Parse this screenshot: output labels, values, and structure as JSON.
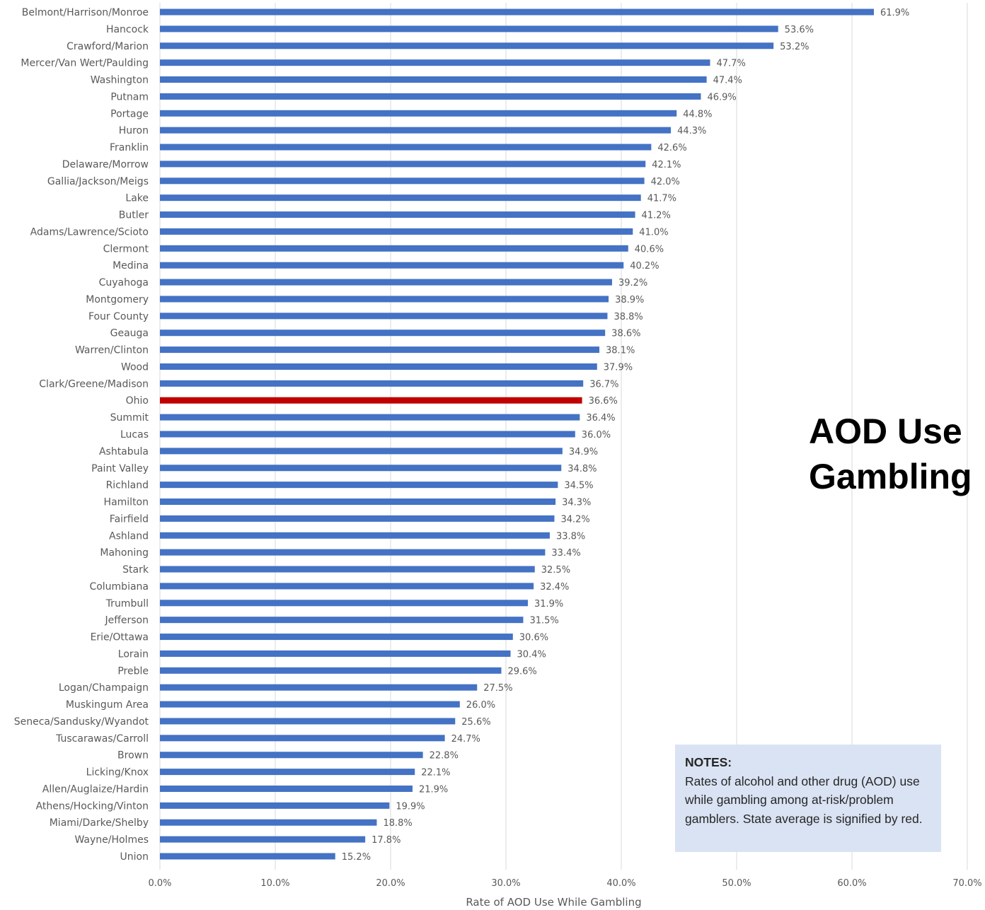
{
  "side_title": {
    "line1": "AOD Use",
    "line2": "Gambling"
  },
  "notes": {
    "heading": "NOTES:",
    "body": "Rates of alcohol and other drug (AOD) use while gambling among at-risk/problem gamblers. State average is signified by red."
  },
  "chart_data": {
    "type": "bar",
    "orientation": "horizontal",
    "xlabel": "Rate of AOD Use While Gambling",
    "xlim": [
      0,
      70
    ],
    "x_ticks": [
      "0.0%",
      "10.0%",
      "20.0%",
      "30.0%",
      "40.0%",
      "50.0%",
      "60.0%",
      "70.0%"
    ],
    "grid": "vertical",
    "bar_color": "#4472c4",
    "highlight_color": "#c00000",
    "highlight_category": "Ohio",
    "categories": [
      "Belmont/Harrison/Monroe",
      "Hancock",
      "Crawford/Marion",
      "Mercer/Van Wert/Paulding",
      "Washington",
      "Putnam",
      "Portage",
      "Huron",
      "Franklin",
      "Delaware/Morrow",
      "Gallia/Jackson/Meigs",
      "Lake",
      "Butler",
      "Adams/Lawrence/Scioto",
      "Clermont",
      "Medina",
      "Cuyahoga",
      "Montgomery",
      "Four County",
      "Geauga",
      "Warren/Clinton",
      "Wood",
      "Clark/Greene/Madison",
      "Ohio",
      "Summit",
      "Lucas",
      "Ashtabula",
      "Paint Valley",
      "Richland",
      "Hamilton",
      "Fairfield",
      "Ashland",
      "Mahoning",
      "Stark",
      "Columbiana",
      "Trumbull",
      "Jefferson",
      "Erie/Ottawa",
      "Lorain",
      "Preble",
      "Logan/Champaign",
      "Muskingum Area",
      "Seneca/Sandusky/Wyandot",
      "Tuscarawas/Carroll",
      "Brown",
      "Licking/Knox",
      "Allen/Auglaize/Hardin",
      "Athens/Hocking/Vinton",
      "Miami/Darke/Shelby",
      "Wayne/Holmes",
      "Union"
    ],
    "values": [
      61.9,
      53.6,
      53.2,
      47.7,
      47.4,
      46.9,
      44.8,
      44.3,
      42.6,
      42.1,
      42.0,
      41.7,
      41.2,
      41.0,
      40.6,
      40.2,
      39.2,
      38.9,
      38.8,
      38.6,
      38.1,
      37.9,
      36.7,
      36.6,
      36.4,
      36.0,
      34.9,
      34.8,
      34.5,
      34.3,
      34.2,
      33.8,
      33.4,
      32.5,
      32.4,
      31.9,
      31.5,
      30.6,
      30.4,
      29.6,
      27.5,
      26.0,
      25.6,
      24.7,
      22.8,
      22.1,
      21.9,
      19.9,
      18.8,
      17.8,
      15.2
    ],
    "value_labels": [
      "61.9%",
      "53.6%",
      "53.2%",
      "47.7%",
      "47.4%",
      "46.9%",
      "44.8%",
      "44.3%",
      "42.6%",
      "42.1%",
      "42.0%",
      "41.7%",
      "41.2%",
      "41.0%",
      "40.6%",
      "40.2%",
      "39.2%",
      "38.9%",
      "38.8%",
      "38.6%",
      "38.1%",
      "37.9%",
      "36.7%",
      "36.6%",
      "36.4%",
      "36.0%",
      "34.9%",
      "34.8%",
      "34.5%",
      "34.3%",
      "34.2%",
      "33.8%",
      "33.4%",
      "32.5%",
      "32.4%",
      "31.9%",
      "31.5%",
      "30.6%",
      "30.4%",
      "29.6%",
      "27.5%",
      "26.0%",
      "25.6%",
      "24.7%",
      "22.8%",
      "22.1%",
      "21.9%",
      "19.9%",
      "18.8%",
      "17.8%",
      "15.2%"
    ]
  }
}
